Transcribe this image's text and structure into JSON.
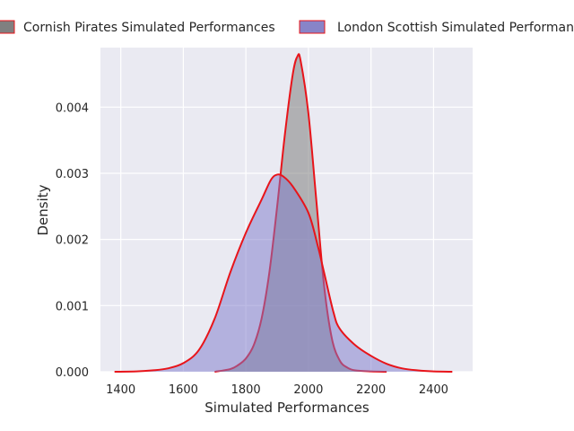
{
  "chart_data": {
    "type": "area",
    "xlabel": "Simulated Performances",
    "ylabel": "Density",
    "xlim": [
      1335,
      2525
    ],
    "ylim": [
      0,
      0.0049
    ],
    "x_ticks": [
      1400,
      1600,
      1800,
      2000,
      2200,
      2400
    ],
    "x_tick_labels": [
      "1400",
      "1600",
      "1800",
      "2000",
      "2200",
      "2400"
    ],
    "y_ticks": [
      0,
      0.001,
      0.002,
      0.003,
      0.004
    ],
    "y_tick_labels": [
      "0.000",
      "0.001",
      "0.002",
      "0.003",
      "0.004"
    ],
    "grid": true,
    "legend_position": "top",
    "series": [
      {
        "name": "Cornish Pirates Simulated Performances",
        "fill_color": "#808080",
        "fill_opacity": 0.55,
        "line_color": "#e8141a",
        "x": [
          1700,
          1750,
          1775,
          1800,
          1825,
          1850,
          1875,
          1900,
          1925,
          1950,
          1965,
          1975,
          2000,
          2025,
          2050,
          2075,
          2100,
          2125,
          2150,
          2200,
          2250
        ],
        "y": [
          0.0,
          4e-05,
          0.0001,
          0.0002,
          0.0004,
          0.0008,
          0.0015,
          0.0025,
          0.0036,
          0.0045,
          0.00477,
          0.0047,
          0.0039,
          0.0026,
          0.0013,
          0.0005,
          0.00017,
          6e-05,
          2e-05,
          5e-06,
          0.0
        ]
      },
      {
        "name": "London Scottish Simulated Performances",
        "fill_color": "#7b77c9",
        "fill_opacity": 0.5,
        "line_color": "#e8141a",
        "x": [
          1380,
          1450,
          1500,
          1550,
          1600,
          1650,
          1700,
          1750,
          1800,
          1850,
          1880,
          1900,
          1920,
          1950,
          2000,
          2030,
          2050,
          2080,
          2100,
          2150,
          2200,
          2250,
          2300,
          2350,
          2400,
          2460
        ],
        "y": [
          0.0,
          5e-06,
          2e-05,
          5e-05,
          0.00013,
          0.00033,
          0.0008,
          0.0015,
          0.0021,
          0.0026,
          0.0029,
          0.00298,
          0.00295,
          0.0028,
          0.0024,
          0.0019,
          0.0015,
          0.0009,
          0.00065,
          0.0004,
          0.00024,
          0.00012,
          5e-05,
          2e-05,
          5e-06,
          0.0
        ]
      }
    ]
  }
}
